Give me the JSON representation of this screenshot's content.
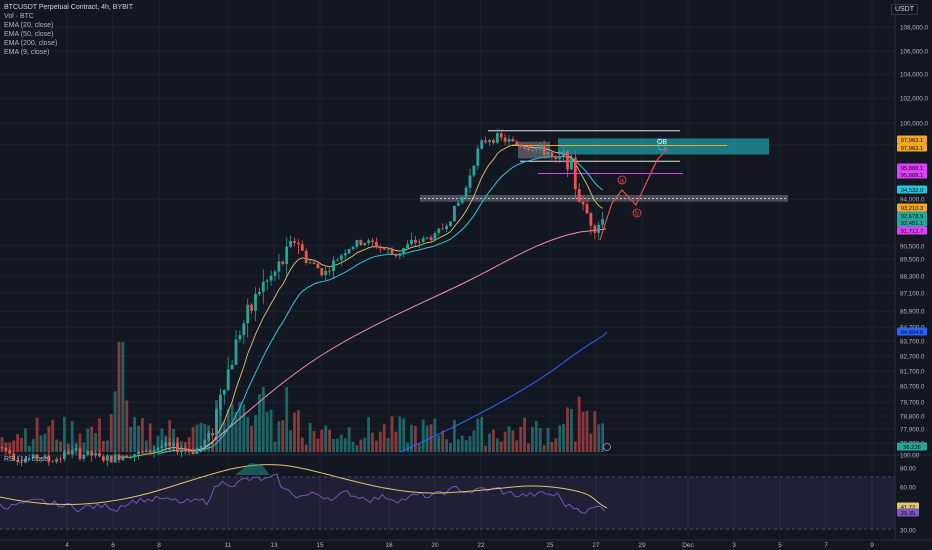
{
  "header": {
    "title": "BTCUSDT Perpetual Contract, 4h, BYBIT",
    "indicators": [
      "Vol · BTC",
      "EMA (20, close)",
      "EMA (50, close)",
      "EMA (200, close)",
      "EMA (9, close)"
    ],
    "currency": "USDT",
    "rsi_label": "RSI (14, close)"
  },
  "colors": {
    "bg": "#131722",
    "up": "#26a69a",
    "down": "#ef5350",
    "ema9": "#e0c46c",
    "ema20": "#26c6da",
    "ema50": "#f48fb1",
    "ema200": "#2962ff",
    "zone_gray": "#787b86",
    "zone_teal": "#1e8c96",
    "rsi_line": "#7e57c2",
    "rsi_ma": "#e0c46c",
    "path_red": "#ef4c4c",
    "hline_white": "#e5e5e5",
    "hline_magenta": "#e040fb"
  },
  "chart_data": {
    "type": "candlestick",
    "symbol": "BTCUSDT",
    "timeframe": "4h",
    "y_axis_ticks": [
      108000,
      106000,
      104000,
      102000,
      100000,
      98000,
      94000,
      90500,
      89500,
      88300,
      87100,
      85900,
      84700,
      83700,
      82700,
      81700,
      80700,
      79700,
      78800,
      77900,
      76900
    ],
    "y_axis_tick_labels": [
      "108,000.0",
      "106,000.0",
      "104,000.0",
      "102,000.0",
      "100,000.0",
      "98,000.0",
      "94,000.0",
      "90,500.0",
      "89,500.0",
      "88,300.0",
      "87,100.0",
      "85,900.0",
      "84,700.0",
      "83,700.0",
      "82,700.0",
      "81,700.0",
      "80,700.0",
      "79,700.0",
      "78,800.0",
      "77,900.0",
      "76,900.0"
    ],
    "x_axis_labels": [
      "4",
      "6",
      "8",
      "11",
      "13",
      "15",
      "18",
      "20",
      "22",
      "25",
      "27",
      "29",
      "Dec",
      "3",
      "5",
      "7",
      "9"
    ],
    "price_tags": [
      {
        "label": "97,963.1",
        "color": "#f5a623"
      },
      {
        "label": "97,963.1",
        "color": "#f5a623"
      },
      {
        "label": "95,888.1",
        "color": "#e040fb"
      },
      {
        "label": "95,888.1",
        "color": "#e040fb"
      },
      {
        "label": "94,532.0",
        "color": "#26c6da"
      },
      {
        "label": "93,210.3",
        "color": "#f5a623"
      },
      {
        "label": "92,678.9",
        "color": "#26a69a"
      },
      {
        "label": "92,451.1",
        "color": "#26a69a"
      },
      {
        "label": "91,712.7",
        "color": "#e040fb"
      },
      {
        "label": "84,894.8",
        "color": "#2962ff"
      },
      {
        "label": "36.236",
        "color": "#26a69a"
      }
    ],
    "rsi_ticks": [
      100,
      80,
      60,
      30
    ],
    "rsi_tick_labels": [
      "100.00",
      "80.00",
      "60.00",
      "30.00"
    ],
    "rsi_tags": [
      {
        "label": "41.72",
        "color": "#e0c46c"
      },
      {
        "label": "35.35",
        "color": "#7e57c2"
      }
    ],
    "annotations": [
      "OB",
      "a",
      "b"
    ]
  }
}
